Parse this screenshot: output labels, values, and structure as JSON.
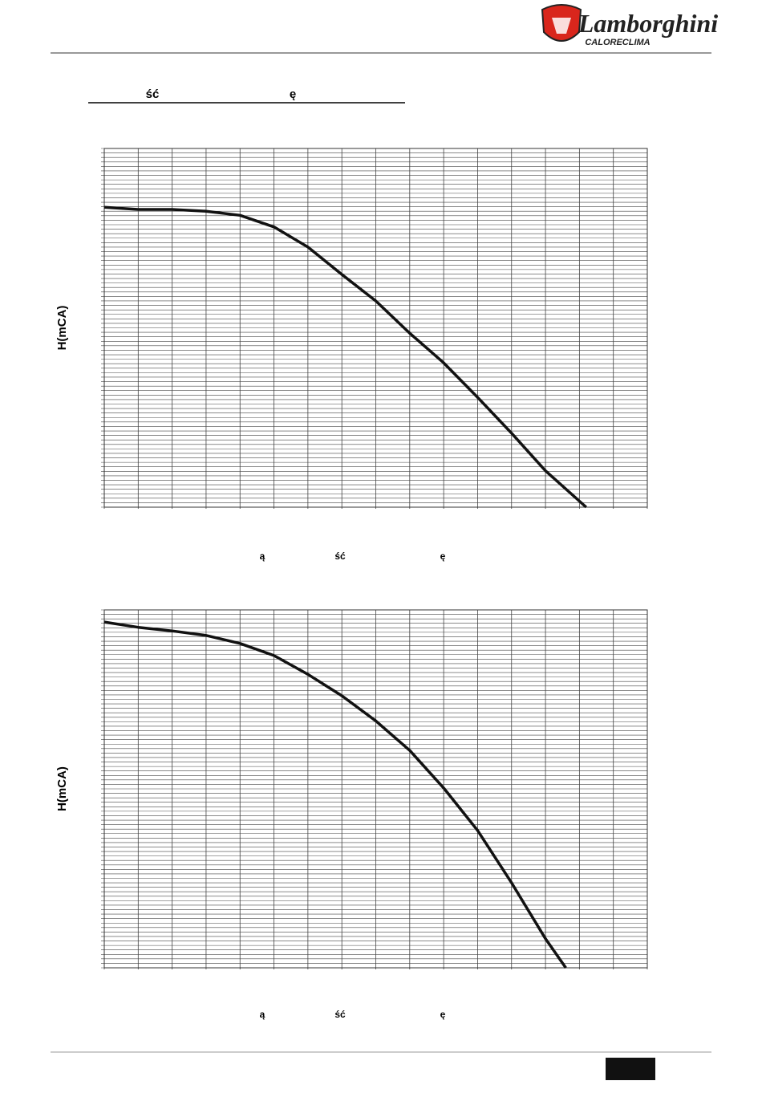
{
  "header": {
    "brand": "Lamborghini",
    "sub": "CALORECLIMA"
  },
  "heading": [
    "ść",
    "ę"
  ],
  "chart_data": [
    {
      "type": "line",
      "y_label": "H(mCA)",
      "x_label": [
        "ą",
        "ść",
        "ę"
      ],
      "color": "#111111",
      "grid": true,
      "xlim": [
        0,
        16
      ],
      "ylim": [
        0,
        80
      ],
      "x": [
        0,
        1,
        2,
        3,
        4,
        5,
        6,
        7,
        8,
        9,
        10,
        11,
        12,
        13,
        14.2
      ],
      "values": [
        66.9,
        66.4,
        66.4,
        66.0,
        65.1,
        62.5,
        58.0,
        51.9,
        46.0,
        38.8,
        32.2,
        24.5,
        16.5,
        8.1,
        0
      ]
    },
    {
      "type": "line",
      "y_label": "H(mCA)",
      "x_label": [
        "ą",
        "ść",
        "ę"
      ],
      "color": "#111111",
      "grid": true,
      "xlim": [
        0,
        16
      ],
      "ylim": [
        0,
        80
      ],
      "x": [
        0,
        1,
        2,
        3,
        4,
        5,
        6,
        7,
        8,
        9,
        10,
        11,
        12,
        13,
        13.6
      ],
      "values": [
        77.3,
        76.1,
        75.3,
        74.3,
        72.5,
        69.8,
        65.6,
        60.8,
        55.2,
        48.6,
        40.2,
        30.7,
        19.0,
        6.5,
        0
      ]
    }
  ]
}
